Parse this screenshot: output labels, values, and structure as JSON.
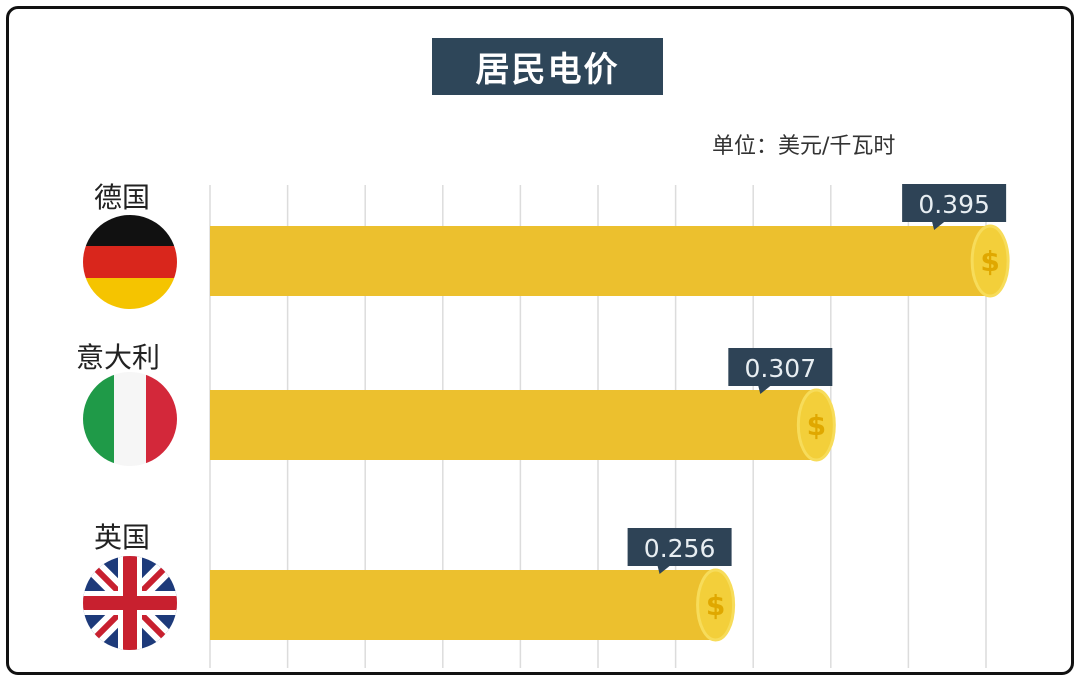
{
  "chart_data": {
    "type": "bar",
    "orientation": "horizontal",
    "title": "居民电价",
    "unit": "单位：美元/千瓦时",
    "categories": [
      "德国",
      "意大利",
      "英国"
    ],
    "values": [
      0.395,
      0.307,
      0.256
    ],
    "data_labels": [
      "0.395",
      "0.307",
      "0.256"
    ],
    "xlim": [
      0,
      0.4
    ],
    "grid": "vertical",
    "colors": {
      "bar": "#ecc02e",
      "coin": "#f3cf3a",
      "label_box": "#2e4356",
      "title_box": "#2e4659"
    },
    "icons": [
      "germany-flag",
      "italy-flag",
      "uk-flag",
      "dollar-coin"
    ]
  }
}
